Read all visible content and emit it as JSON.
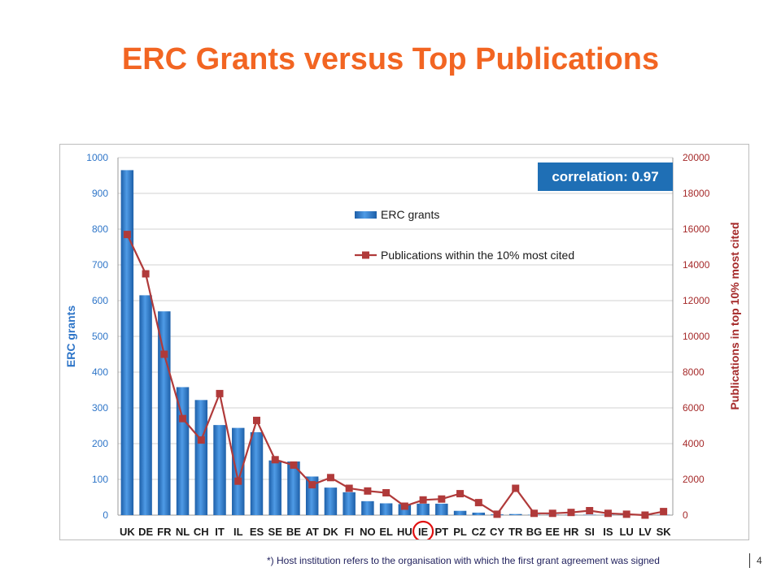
{
  "slide": {
    "title": "ERC Grants versus Top Publications",
    "footnote": "*) Host institution refers to the organisation with which the first grant agreement was signed",
    "page_number": "4"
  },
  "chart_data": {
    "type": "bar",
    "categories": [
      "UK",
      "DE",
      "FR",
      "NL",
      "CH",
      "IT",
      "IL",
      "ES",
      "SE",
      "BE",
      "AT",
      "DK",
      "FI",
      "NO",
      "EL",
      "HU",
      "IE",
      "PT",
      "PL",
      "CZ",
      "CY",
      "TR",
      "BG",
      "EE",
      "HR",
      "SI",
      "IS",
      "LU",
      "LV",
      "SK"
    ],
    "highlighted_category": "IE",
    "series": [
      {
        "name": "ERC grants",
        "type": "bar",
        "axis": "left",
        "color": "#2E75C8",
        "values": [
          965,
          615,
          570,
          358,
          322,
          252,
          244,
          232,
          153,
          150,
          108,
          77,
          64,
          39,
          33,
          31,
          32,
          32,
          12,
          7,
          2,
          3,
          1,
          1,
          1,
          1,
          1,
          1,
          1,
          1
        ]
      },
      {
        "name": "Publications within the 10% most cited",
        "type": "line",
        "axis": "right",
        "color": "#B03A3A",
        "values": [
          15700,
          13500,
          9000,
          5400,
          4200,
          6800,
          1900,
          5300,
          3100,
          2800,
          1700,
          2100,
          1500,
          1350,
          1250,
          500,
          850,
          900,
          1200,
          700,
          50,
          1500,
          100,
          100,
          150,
          250,
          100,
          50,
          0,
          200
        ]
      }
    ],
    "ylabel": "ERC grants",
    "y2label": "Publications in top 10% most cited",
    "ylim": [
      0,
      1000
    ],
    "y2lim": [
      0,
      20000
    ],
    "yticks": [
      0,
      100,
      200,
      300,
      400,
      500,
      600,
      700,
      800,
      900,
      1000
    ],
    "y2ticks": [
      0,
      2000,
      4000,
      6000,
      8000,
      10000,
      12000,
      14000,
      16000,
      18000,
      20000
    ],
    "annotation": "correlation: 0.97",
    "grid": true,
    "legend_position": "top-center",
    "colors": {
      "left_axis": "#2E75C8",
      "right_axis": "#A52A2A",
      "annotation_bg": "#1F6FB5",
      "highlight_circle": "#E01010"
    }
  }
}
